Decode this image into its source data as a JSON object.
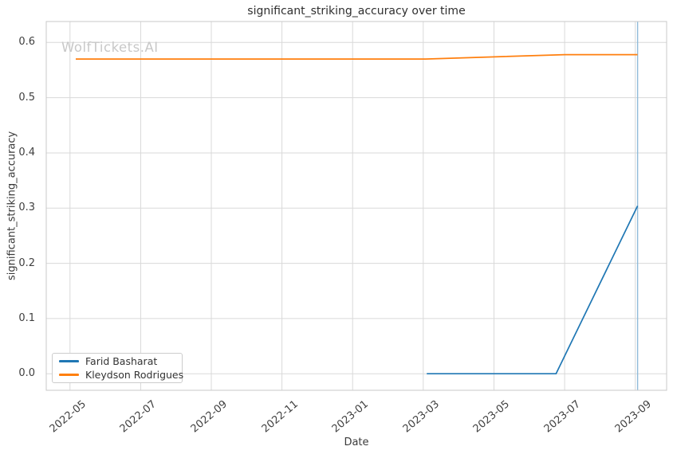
{
  "watermark": "WolfTickets.AI",
  "chart_data": {
    "type": "line",
    "title": "significant_striking_accuracy over time",
    "xlabel": "Date",
    "ylabel": "significant_striking_accuracy",
    "grid": true,
    "legend_position": "lower left",
    "x_ticks": [
      "2022-05",
      "2022-07",
      "2022-09",
      "2022-11",
      "2023-01",
      "2023-03",
      "2023-05",
      "2023-07",
      "2023-09"
    ],
    "y_ticks": [
      "0.0",
      "0.1",
      "0.2",
      "0.3",
      "0.4",
      "0.5",
      "0.6"
    ],
    "xlim": [
      "2022-04-11",
      "2023-09-28"
    ],
    "ylim": [
      -0.03,
      0.638
    ],
    "series": [
      {
        "name": "Farid Basharat",
        "color": "#1f77b4",
        "points": [
          [
            "2023-03-04",
            0.0
          ],
          [
            "2023-06-24",
            0.0
          ],
          [
            "2023-09-03",
            0.304
          ]
        ]
      },
      {
        "name": "Kleydson Rodrigues",
        "color": "#ff7f0e",
        "points": [
          [
            "2022-05-06",
            0.57
          ],
          [
            "2023-03-03",
            0.57
          ],
          [
            "2023-07-01",
            0.578
          ],
          [
            "2023-09-03",
            0.578
          ]
        ]
      }
    ],
    "event_lines": [
      {
        "date": "2023-09-03",
        "color": "#8fbbd9"
      }
    ],
    "grid_color": "#d9d9d9",
    "spine_color": "#c9c9c9"
  }
}
